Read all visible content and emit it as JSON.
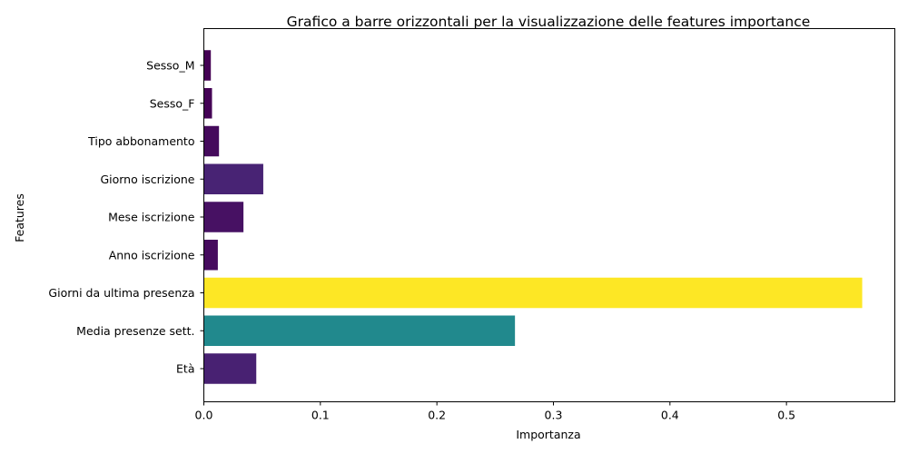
{
  "chart_data": {
    "type": "bar",
    "orientation": "horizontal",
    "title": "Grafico a barre orizzontali per la visualizzazione delle features importance",
    "xlabel": "Importanza",
    "ylabel": "Features",
    "categories": [
      "Età",
      "Media presenze sett.",
      "Giorni da ultima presenza",
      "Anno iscrizione",
      "Mese iscrizione",
      "Giorno iscrizione",
      "Tipo abbonamento",
      "Sesso_F",
      "Sesso_M"
    ],
    "values": [
      0.045,
      0.267,
      0.565,
      0.012,
      0.034,
      0.051,
      0.013,
      0.007,
      0.006
    ],
    "colors": [
      "#482172",
      "#21898d",
      "#fde725",
      "#460b5e",
      "#471163",
      "#482374",
      "#450a5c",
      "#440255",
      "#440154"
    ],
    "xlim": [
      0,
      0.593
    ],
    "xticks": [
      "0.0",
      "0.1",
      "0.2",
      "0.3",
      "0.4",
      "0.5"
    ],
    "grid": false,
    "legend": "none"
  }
}
